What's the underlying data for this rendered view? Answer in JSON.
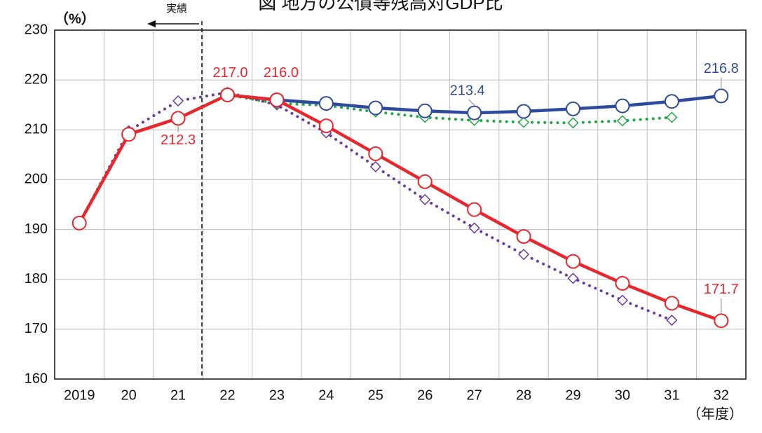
{
  "chart_data": {
    "type": "line",
    "title": "図 地方の公債等残高対GDP比",
    "y_label": "（%）",
    "x_label": "（年度）",
    "annotations": [
      "実績"
    ],
    "categories": [
      "2019",
      "20",
      "21",
      "22",
      "23",
      "24",
      "25",
      "26",
      "27",
      "28",
      "29",
      "30",
      "31",
      "32"
    ],
    "ylim": [
      160,
      230
    ],
    "yticks": [
      160,
      170,
      180,
      190,
      200,
      210,
      220,
      230
    ],
    "grid": true,
    "series": [
      {
        "color": "#6a3d9a",
        "marker": "diamond",
        "dash": "dotted",
        "values": [
          191.3,
          209.8,
          215.8,
          217.5,
          215.0,
          209.4,
          202.6,
          196.0,
          190.3,
          185.0,
          180.2,
          175.8,
          171.8,
          null
        ]
      },
      {
        "color": "#22a845",
        "marker": "diamond",
        "dash": "dotted",
        "values": [
          null,
          null,
          null,
          217.0,
          215.3,
          214.9,
          213.6,
          212.5,
          211.9,
          211.5,
          211.4,
          211.8,
          212.5,
          null
        ]
      },
      {
        "color": "#2e4a9a",
        "marker": "circle",
        "dash": "solid",
        "values": [
          null,
          null,
          null,
          217.0,
          216.0,
          215.3,
          214.4,
          213.8,
          213.4,
          213.7,
          214.2,
          214.8,
          215.7,
          216.8
        ],
        "value_labels": [
          null,
          null,
          null,
          null,
          null,
          null,
          null,
          null,
          "213.4",
          null,
          null,
          null,
          null,
          "216.8"
        ]
      },
      {
        "color": "#e8262d",
        "marker": "circle",
        "dash": "solid",
        "values": [
          191.3,
          209.1,
          212.3,
          217.0,
          216.0,
          210.8,
          205.2,
          199.6,
          194.0,
          188.6,
          183.6,
          179.2,
          175.2,
          171.7
        ],
        "value_labels": [
          null,
          null,
          "212.3",
          "217.0",
          "216.0",
          null,
          null,
          null,
          null,
          null,
          null,
          null,
          null,
          "171.7"
        ]
      }
    ]
  }
}
